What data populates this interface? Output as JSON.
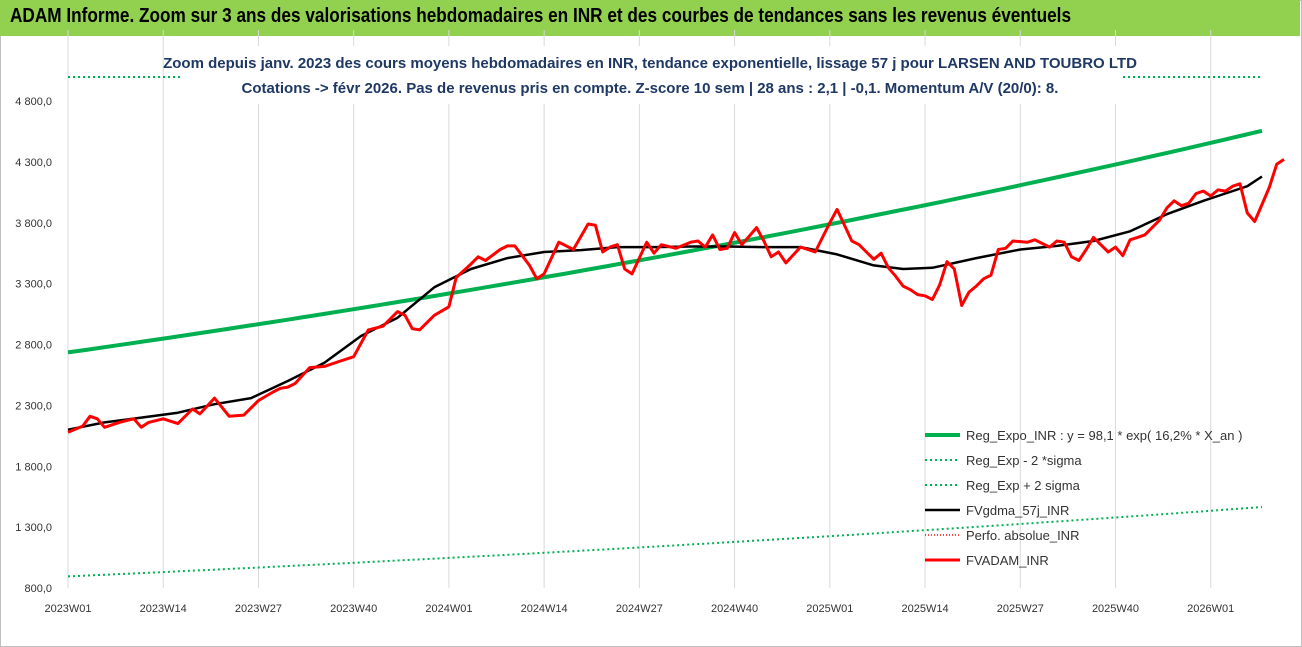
{
  "banner": {
    "title": "ADAM Informe. Zoom sur 3 ans des valorisations hebdomadaires en INR et des courbes de tendances sans les revenus éventuels"
  },
  "colors": {
    "banner_bg": "#92d050",
    "reg_expo": "#00b050",
    "sigma_bands": "#00b050",
    "fvgdma": "#000000",
    "perfo": "#ff0000",
    "fvadam": "#ff0000",
    "title_text": "#1f3864"
  },
  "chart_data": {
    "type": "line",
    "title": "Zoom depuis janv. 2023 des cours moyens hebdomadaires en INR, tendance exponentielle, lissage 57 j pour LARSEN AND TOUBRO LTD",
    "subtitle": "Cotations -> févr 2026. Pas de revenus pris en compte. Z-score 10 sem | 28 ans : 2,1 | -0,1. Momentum A/V (20/0): 8.",
    "xlabel": "",
    "ylabel": "",
    "x_range": [
      0,
      163
    ],
    "ylim": [
      800,
      4800
    ],
    "yticks": [
      "4 800,0",
      "4 300,0",
      "3 800,0",
      "3 300,0",
      "2 800,0",
      "2 300,0",
      "1 800,0",
      "1 300,0",
      "800,0"
    ],
    "yticks_values": [
      4800,
      4300,
      3800,
      3300,
      2800,
      2300,
      1800,
      1300,
      800
    ],
    "xticks": [
      "2023W01",
      "2023W14",
      "2023W27",
      "2023W40",
      "2024W01",
      "2024W14",
      "2024W27",
      "2024W40",
      "2025W01",
      "2025W14",
      "2025W27",
      "2025W40",
      "2026W01"
    ],
    "xticks_index": [
      0,
      13,
      26,
      39,
      52,
      65,
      78,
      91,
      104,
      117,
      130,
      143,
      156
    ],
    "grid": {
      "vertical": true,
      "horizontal": false
    },
    "legend_position": "bottom-right",
    "series": [
      {
        "name": "Reg_Expo_INR : y = 98,1 * exp( 16,2% *  X_an )",
        "style": "solid-thick",
        "start": 2735,
        "end": 4555
      },
      {
        "name": "Reg_Exp - 2 *sigma",
        "style": "dotted",
        "start": 895,
        "end": 1465
      },
      {
        "name": "Reg_Exp + 2 sigma",
        "style": "dotted",
        "start": 5000,
        "end": 5000
      },
      {
        "name": "FVgdma_57j_INR",
        "style": "solid",
        "points": [
          [
            0,
            2100
          ],
          [
            5,
            2160
          ],
          [
            10,
            2200
          ],
          [
            15,
            2240
          ],
          [
            20,
            2310
          ],
          [
            25,
            2360
          ],
          [
            30,
            2500
          ],
          [
            35,
            2650
          ],
          [
            40,
            2870
          ],
          [
            45,
            3020
          ],
          [
            50,
            3270
          ],
          [
            55,
            3420
          ],
          [
            60,
            3510
          ],
          [
            65,
            3560
          ],
          [
            70,
            3575
          ],
          [
            75,
            3600
          ],
          [
            80,
            3600
          ],
          [
            85,
            3605
          ],
          [
            90,
            3605
          ],
          [
            95,
            3600
          ],
          [
            100,
            3600
          ],
          [
            105,
            3540
          ],
          [
            110,
            3450
          ],
          [
            114,
            3420
          ],
          [
            118,
            3430
          ],
          [
            124,
            3510
          ],
          [
            130,
            3580
          ],
          [
            135,
            3610
          ],
          [
            140,
            3650
          ],
          [
            145,
            3730
          ],
          [
            150,
            3870
          ],
          [
            155,
            3980
          ],
          [
            158,
            4040
          ],
          [
            161,
            4100
          ],
          [
            163,
            4180
          ]
        ]
      },
      {
        "name": "Perfo. absolue_INR",
        "style": "dotted",
        "points": []
      },
      {
        "name": "FVADAM_INR",
        "style": "solid-thick",
        "points": [
          [
            0,
            2080
          ],
          [
            2,
            2130
          ],
          [
            3,
            2210
          ],
          [
            4,
            2190
          ],
          [
            5,
            2120
          ],
          [
            7,
            2160
          ],
          [
            9,
            2190
          ],
          [
            10,
            2120
          ],
          [
            11,
            2160
          ],
          [
            13,
            2190
          ],
          [
            15,
            2150
          ],
          [
            17,
            2270
          ],
          [
            18,
            2230
          ],
          [
            20,
            2360
          ],
          [
            22,
            2210
          ],
          [
            24,
            2220
          ],
          [
            26,
            2340
          ],
          [
            28,
            2410
          ],
          [
            29,
            2440
          ],
          [
            30,
            2450
          ],
          [
            31,
            2480
          ],
          [
            33,
            2610
          ],
          [
            35,
            2620
          ],
          [
            37,
            2660
          ],
          [
            39,
            2700
          ],
          [
            41,
            2920
          ],
          [
            43,
            2950
          ],
          [
            45,
            3070
          ],
          [
            46,
            3040
          ],
          [
            47,
            2930
          ],
          [
            48,
            2920
          ],
          [
            50,
            3040
          ],
          [
            52,
            3110
          ],
          [
            53,
            3350
          ],
          [
            55,
            3460
          ],
          [
            56,
            3520
          ],
          [
            57,
            3490
          ],
          [
            59,
            3580
          ],
          [
            60,
            3610
          ],
          [
            61,
            3610
          ],
          [
            63,
            3450
          ],
          [
            64,
            3340
          ],
          [
            65,
            3380
          ],
          [
            67,
            3640
          ],
          [
            69,
            3580
          ],
          [
            71,
            3790
          ],
          [
            72,
            3780
          ],
          [
            73,
            3560
          ],
          [
            74,
            3600
          ],
          [
            75,
            3620
          ],
          [
            76,
            3420
          ],
          [
            77,
            3380
          ],
          [
            79,
            3640
          ],
          [
            80,
            3550
          ],
          [
            81,
            3620
          ],
          [
            83,
            3590
          ],
          [
            85,
            3640
          ],
          [
            86,
            3650
          ],
          [
            87,
            3600
          ],
          [
            88,
            3700
          ],
          [
            89,
            3580
          ],
          [
            90,
            3590
          ],
          [
            91,
            3720
          ],
          [
            92,
            3620
          ],
          [
            94,
            3760
          ],
          [
            95,
            3650
          ],
          [
            96,
            3520
          ],
          [
            97,
            3560
          ],
          [
            98,
            3470
          ],
          [
            100,
            3600
          ],
          [
            101,
            3580
          ],
          [
            102,
            3560
          ],
          [
            104,
            3800
          ],
          [
            105,
            3910
          ],
          [
            106,
            3780
          ],
          [
            107,
            3650
          ],
          [
            108,
            3620
          ],
          [
            109,
            3560
          ],
          [
            110,
            3500
          ],
          [
            111,
            3550
          ],
          [
            112,
            3430
          ],
          [
            113,
            3360
          ],
          [
            114,
            3280
          ],
          [
            115,
            3250
          ],
          [
            116,
            3210
          ],
          [
            117,
            3200
          ],
          [
            118,
            3170
          ],
          [
            119,
            3290
          ],
          [
            120,
            3480
          ],
          [
            121,
            3420
          ],
          [
            122,
            3120
          ],
          [
            123,
            3230
          ],
          [
            124,
            3280
          ],
          [
            125,
            3340
          ],
          [
            126,
            3370
          ],
          [
            127,
            3580
          ],
          [
            128,
            3590
          ],
          [
            129,
            3650
          ],
          [
            131,
            3640
          ],
          [
            132,
            3660
          ],
          [
            134,
            3600
          ],
          [
            135,
            3650
          ],
          [
            136,
            3640
          ],
          [
            137,
            3520
          ],
          [
            138,
            3490
          ],
          [
            139,
            3580
          ],
          [
            140,
            3680
          ],
          [
            141,
            3620
          ],
          [
            142,
            3560
          ],
          [
            143,
            3600
          ],
          [
            144,
            3530
          ],
          [
            145,
            3660
          ],
          [
            146,
            3680
          ],
          [
            147,
            3700
          ],
          [
            149,
            3820
          ],
          [
            150,
            3920
          ],
          [
            151,
            3980
          ],
          [
            152,
            3940
          ],
          [
            153,
            3960
          ],
          [
            154,
            4040
          ],
          [
            155,
            4060
          ],
          [
            156,
            4020
          ],
          [
            157,
            4070
          ],
          [
            158,
            4060
          ],
          [
            159,
            4100
          ],
          [
            160,
            4120
          ],
          [
            161,
            3880
          ],
          [
            162,
            3810
          ],
          [
            163,
            3950
          ],
          [
            164,
            4090
          ],
          [
            165,
            4280
          ],
          [
            166,
            4320
          ]
        ]
      }
    ]
  }
}
